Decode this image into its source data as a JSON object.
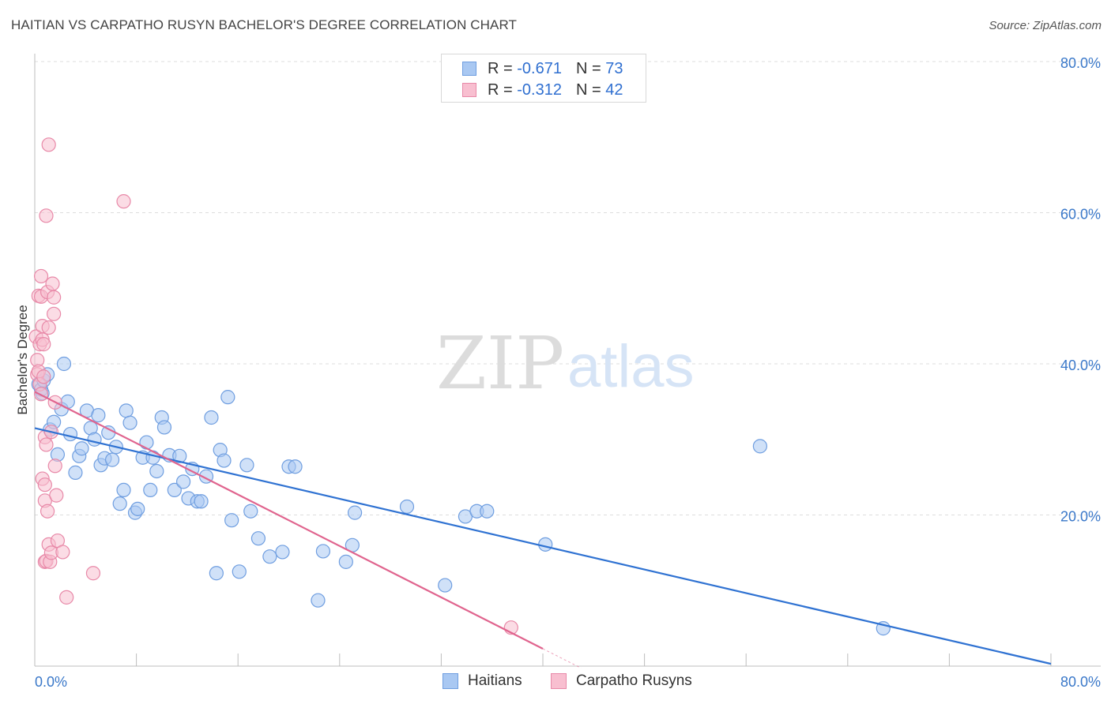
{
  "header": {
    "title": "HAITIAN VS CARPATHO RUSYN BACHELOR'S DEGREE CORRELATION CHART",
    "source": "Source: ZipAtlas.com"
  },
  "watermark": {
    "zip": "ZIP",
    "atlas": "atlas"
  },
  "legend_top": {
    "rows": [
      {
        "r_label": "R =",
        "r_value": "-0.671",
        "n_label": "N =",
        "n_value": "73",
        "color": "#a9c8f2",
        "border": "#6f9ee0"
      },
      {
        "r_label": "R =",
        "r_value": "-0.312",
        "n_label": "N =",
        "n_value": "42",
        "color": "#f8bfd0",
        "border": "#e889a8"
      }
    ]
  },
  "legend_bottom": {
    "items": [
      {
        "label": "Haitians",
        "color": "#a9c8f2",
        "border": "#6f9ee0"
      },
      {
        "label": "Carpatho Rusyns",
        "color": "#f8bfd0",
        "border": "#e889a8"
      }
    ]
  },
  "chart_data": {
    "type": "scatter",
    "title": "HAITIAN VS CARPATHO RUSYN BACHELOR'S DEGREE CORRELATION CHART",
    "xlabel": "",
    "ylabel": "Bachelor's Degree",
    "xlim": [
      0,
      80
    ],
    "ylim": [
      0,
      80
    ],
    "x_tick_labels": [
      "0.0%",
      "80.0%"
    ],
    "y_ticks": [
      20,
      40,
      60,
      80
    ],
    "y_tick_labels": [
      "20.0%",
      "40.0%",
      "60.0%",
      "80.0%"
    ],
    "grid": true,
    "legend_position": "top-center",
    "series": [
      {
        "name": "Haitians",
        "color": "#a9c8f2",
        "stroke": "#6f9ee0",
        "line_color": "#2f72d2",
        "R": -0.671,
        "N": 73,
        "trend": {
          "x0": 0,
          "y0": 31.5,
          "x1": 80,
          "y1": 0.3
        },
        "points": [
          [
            0.3,
            37.3
          ],
          [
            0.5,
            36.6
          ],
          [
            0.6,
            36.1
          ],
          [
            0.7,
            37.8
          ],
          [
            1.0,
            38.6
          ],
          [
            1.2,
            31.3
          ],
          [
            1.5,
            32.3
          ],
          [
            1.8,
            28.0
          ],
          [
            2.1,
            34.0
          ],
          [
            2.3,
            40.0
          ],
          [
            2.6,
            35.0
          ],
          [
            2.8,
            30.7
          ],
          [
            3.2,
            25.6
          ],
          [
            3.5,
            27.8
          ],
          [
            3.7,
            28.8
          ],
          [
            4.1,
            33.8
          ],
          [
            4.4,
            31.5
          ],
          [
            4.7,
            30.0
          ],
          [
            5.0,
            33.2
          ],
          [
            5.2,
            26.6
          ],
          [
            5.5,
            27.5
          ],
          [
            5.8,
            30.9
          ],
          [
            6.1,
            27.3
          ],
          [
            6.4,
            29.0
          ],
          [
            6.7,
            21.5
          ],
          [
            7.0,
            23.3
          ],
          [
            7.2,
            33.8
          ],
          [
            7.5,
            32.2
          ],
          [
            7.9,
            20.3
          ],
          [
            8.1,
            20.8
          ],
          [
            8.5,
            27.6
          ],
          [
            8.8,
            29.6
          ],
          [
            9.1,
            23.3
          ],
          [
            9.3,
            27.6
          ],
          [
            9.6,
            25.8
          ],
          [
            10.0,
            32.9
          ],
          [
            10.2,
            31.6
          ],
          [
            10.6,
            27.9
          ],
          [
            11.0,
            23.3
          ],
          [
            11.4,
            27.8
          ],
          [
            11.7,
            24.4
          ],
          [
            12.1,
            22.2
          ],
          [
            12.4,
            26.1
          ],
          [
            12.8,
            21.8
          ],
          [
            13.1,
            21.8
          ],
          [
            13.5,
            25.1
          ],
          [
            13.9,
            32.9
          ],
          [
            14.3,
            12.3
          ],
          [
            14.6,
            28.6
          ],
          [
            14.9,
            27.2
          ],
          [
            15.2,
            35.6
          ],
          [
            15.5,
            19.3
          ],
          [
            16.1,
            12.5
          ],
          [
            16.7,
            26.6
          ],
          [
            17.0,
            20.5
          ],
          [
            17.6,
            16.9
          ],
          [
            18.5,
            14.5
          ],
          [
            19.5,
            15.1
          ],
          [
            20.0,
            26.4
          ],
          [
            20.5,
            26.4
          ],
          [
            22.3,
            8.7
          ],
          [
            22.7,
            15.2
          ],
          [
            24.5,
            13.8
          ],
          [
            25.0,
            16.0
          ],
          [
            25.2,
            20.3
          ],
          [
            29.3,
            21.1
          ],
          [
            32.3,
            10.7
          ],
          [
            33.9,
            19.8
          ],
          [
            34.8,
            20.5
          ],
          [
            35.6,
            20.5
          ],
          [
            40.2,
            16.1
          ],
          [
            57.1,
            29.1
          ],
          [
            66.8,
            5.0
          ]
        ]
      },
      {
        "name": "Carpatho Rusyns",
        "color": "#f8bfd0",
        "stroke": "#e889a8",
        "line_color": "#e0648e",
        "R": -0.312,
        "N": 42,
        "trend": {
          "x0": 0,
          "y0": 36.3,
          "x1": 40.0,
          "y1": 2.3,
          "dash_to_x": 43.0
        },
        "points": [
          [
            0.1,
            43.6
          ],
          [
            0.2,
            38.6
          ],
          [
            0.2,
            40.5
          ],
          [
            0.3,
            39.0
          ],
          [
            0.3,
            49.0
          ],
          [
            0.4,
            42.6
          ],
          [
            0.4,
            37.3
          ],
          [
            0.5,
            51.6
          ],
          [
            0.5,
            48.9
          ],
          [
            0.6,
            43.2
          ],
          [
            0.6,
            45.0
          ],
          [
            0.6,
            24.8
          ],
          [
            0.7,
            42.6
          ],
          [
            0.7,
            38.3
          ],
          [
            0.8,
            30.3
          ],
          [
            0.8,
            24.0
          ],
          [
            0.8,
            21.9
          ],
          [
            0.8,
            13.8
          ],
          [
            0.9,
            29.3
          ],
          [
            0.9,
            13.9
          ],
          [
            0.9,
            59.6
          ],
          [
            1.0,
            20.5
          ],
          [
            1.0,
            49.5
          ],
          [
            1.1,
            69.0
          ],
          [
            1.1,
            44.8
          ],
          [
            1.1,
            16.1
          ],
          [
            1.2,
            13.8
          ],
          [
            1.3,
            31.0
          ],
          [
            1.3,
            15.0
          ],
          [
            1.4,
            50.6
          ],
          [
            1.5,
            48.8
          ],
          [
            1.5,
            46.6
          ],
          [
            1.6,
            34.9
          ],
          [
            1.6,
            26.5
          ],
          [
            1.7,
            22.6
          ],
          [
            1.8,
            16.6
          ],
          [
            2.2,
            15.1
          ],
          [
            2.5,
            9.1
          ],
          [
            4.6,
            12.3
          ],
          [
            7.0,
            61.5
          ],
          [
            37.5,
            5.1
          ],
          [
            0.5,
            36.0
          ]
        ]
      }
    ]
  }
}
